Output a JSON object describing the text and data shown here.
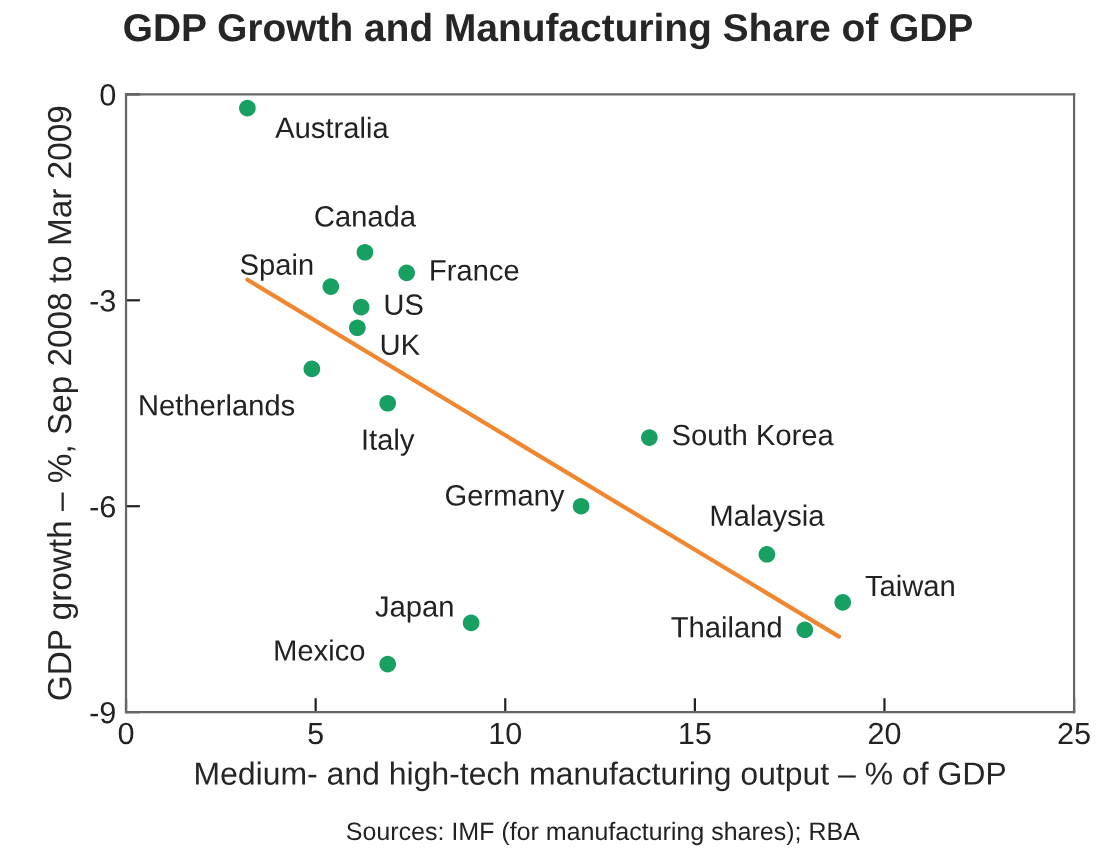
{
  "chart_data": {
    "type": "scatter",
    "title": "GDP Growth and Manufacturing Share of GDP",
    "xlabel": "Medium- and high-tech manufacturing output – % of GDP",
    "ylabel": "GDP growth – %, Sep 2008 to Mar 2009",
    "xlim": [
      0,
      25
    ],
    "ylim": [
      -9,
      0
    ],
    "xticks": [
      0,
      5,
      10,
      15,
      20,
      25
    ],
    "yticks": [
      -9,
      -6,
      -3,
      0
    ],
    "grid": false,
    "legend": false,
    "series": [
      {
        "marker": "circle",
        "color": "#17a061",
        "x": [
          3.2,
          6.3,
          7.4,
          5.4,
          6.2,
          6.1,
          4.9,
          6.9,
          13.8,
          12.0,
          16.9,
          18.9,
          17.9,
          9.1,
          6.9
        ],
        "values": [
          -0.2,
          -2.3,
          -2.6,
          -2.8,
          -3.1,
          -3.4,
          -4.0,
          -4.5,
          -5.0,
          -6.0,
          -6.7,
          -7.4,
          -7.8,
          -7.7,
          -8.3
        ]
      },
      {
        "type": "line",
        "marker": "none",
        "color": "#f0862e",
        "x": [
          3.2,
          18.8
        ],
        "values": [
          -2.7,
          -7.9
        ]
      }
    ],
    "annotations": [
      {
        "text": "Australia",
        "x": 3.2,
        "y": -0.2
      },
      {
        "text": "Canada",
        "x": 6.3,
        "y": -2.3
      },
      {
        "text": "France",
        "x": 7.4,
        "y": -2.6
      },
      {
        "text": "Spain",
        "x": 5.4,
        "y": -2.8
      },
      {
        "text": "US",
        "x": 6.2,
        "y": -3.1
      },
      {
        "text": "UK",
        "x": 6.1,
        "y": -3.4
      },
      {
        "text": "Netherlands",
        "x": 4.9,
        "y": -4.0
      },
      {
        "text": "Italy",
        "x": 6.9,
        "y": -4.5
      },
      {
        "text": "South Korea",
        "x": 13.8,
        "y": -5.0
      },
      {
        "text": "Germany",
        "x": 12.0,
        "y": -6.0
      },
      {
        "text": "Malaysia",
        "x": 16.9,
        "y": -6.7
      },
      {
        "text": "Taiwan",
        "x": 18.9,
        "y": -7.4
      },
      {
        "text": "Thailand",
        "x": 17.9,
        "y": -7.8
      },
      {
        "text": "Japan",
        "x": 9.1,
        "y": -7.7
      },
      {
        "text": "Mexico",
        "x": 6.9,
        "y": -8.3
      },
      "Sources: IMF (for manufacturing shares); RBA"
    ]
  }
}
